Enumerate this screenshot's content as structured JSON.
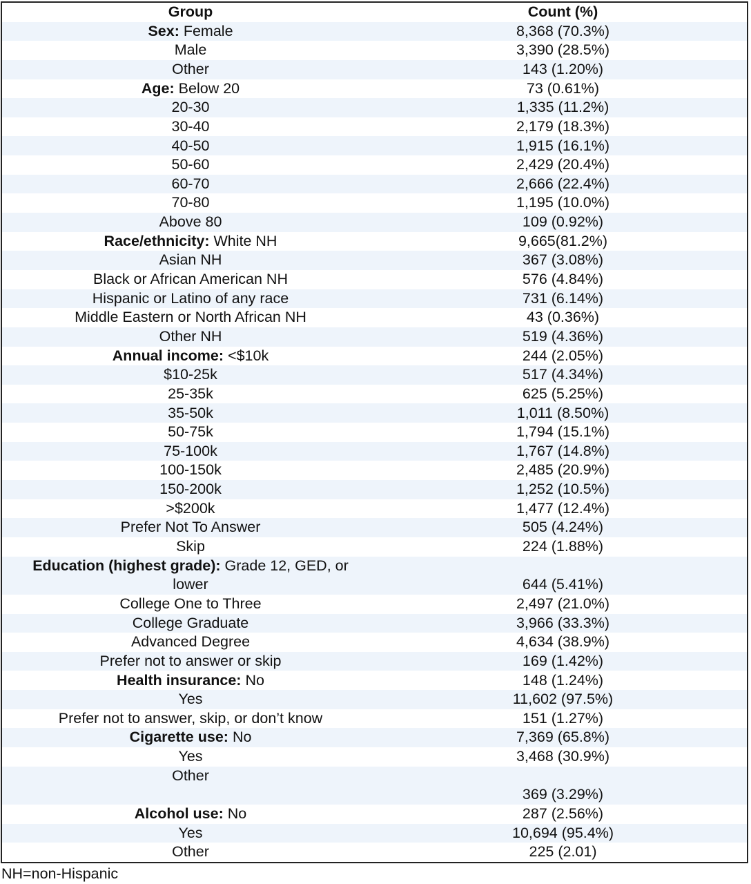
{
  "table": {
    "headers": {
      "group": "Group",
      "count": "Count (%)"
    },
    "rows": [
      {
        "label": "Sex:",
        "group": "Female",
        "count": "8,368 (70.3%)"
      },
      {
        "group": "Male",
        "count": "3,390 (28.5%)"
      },
      {
        "group": "Other",
        "count": "143 (1.20%)"
      },
      {
        "label": "Age:",
        "group": "Below 20",
        "count": "73 (0.61%)"
      },
      {
        "group": "20-30",
        "count": "1,335 (11.2%)"
      },
      {
        "group": "30-40",
        "count": "2,179 (18.3%)"
      },
      {
        "group": "40-50",
        "count": "1,915 (16.1%)"
      },
      {
        "group": "50-60",
        "count": "2,429 (20.4%)"
      },
      {
        "group": "60-70",
        "count": "2,666 (22.4%)"
      },
      {
        "group": "70-80",
        "count": "1,195 (10.0%)"
      },
      {
        "group": "Above 80",
        "count": "109 (0.92%)"
      },
      {
        "label": "Race/ethnicity:",
        "group": "White NH",
        "count": "9,665(81.2%)"
      },
      {
        "group": "Asian NH",
        "count": "367 (3.08%)"
      },
      {
        "group": "Black or African American NH",
        "count": "576 (4.84%)"
      },
      {
        "group": "Hispanic or Latino of any race",
        "count": "731 (6.14%)"
      },
      {
        "group": "Middle Eastern or North African NH",
        "count": "43 (0.36%)"
      },
      {
        "group": "Other NH",
        "count": "519 (4.36%)"
      },
      {
        "label": "Annual income:",
        "group": "<$10k",
        "count": "244 (2.05%)"
      },
      {
        "group": "$10-25k",
        "count": "517 (4.34%)"
      },
      {
        "group": "25-35k",
        "count": "625 (5.25%)"
      },
      {
        "group": "35-50k",
        "count": "1,011 (8.50%)"
      },
      {
        "group": "50-75k",
        "count": "1,794 (15.1%)"
      },
      {
        "group": "75-100k",
        "count": "1,767 (14.8%)"
      },
      {
        "group": "100-150k",
        "count": "2,485 (20.9%)"
      },
      {
        "group": "150-200k",
        "count": "1,252 (10.5%)"
      },
      {
        "group": ">$200k",
        "count": "1,477 (12.4%)"
      },
      {
        "group": "Prefer Not To Answer",
        "count": "505 (4.24%)"
      },
      {
        "group": "Skip",
        "count": "224 (1.88%)"
      },
      {
        "label": "Education (highest grade):",
        "group": "Grade 12, GED, or",
        "group_line2": "lower",
        "count": "644 (5.41%)"
      },
      {
        "group": "College One to Three",
        "count": "2,497 (21.0%)"
      },
      {
        "group": "College Graduate",
        "count": "3,966 (33.3%)"
      },
      {
        "group": "Advanced Degree",
        "count": "4,634 (38.9%)"
      },
      {
        "group": "Prefer not to answer or skip",
        "count": "169 (1.42%)"
      },
      {
        "label": "Health insurance:",
        "group": "No",
        "count": "148 (1.24%)"
      },
      {
        "group": "Yes",
        "count": "11,602 (97.5%)"
      },
      {
        "group": "Prefer not to answer, skip, or don’t know",
        "count": "151 (1.27%)"
      },
      {
        "label": "Cigarette use:",
        "group": "No",
        "count": "7,369 (65.8%)"
      },
      {
        "group": "Yes",
        "count": "3,468 (30.9%)"
      },
      {
        "group": "Other",
        "count": "369 (3.29%)",
        "tall_count_below": true
      },
      {
        "label": "Alcohol use:",
        "group": "No",
        "count": "287 (2.56%)"
      },
      {
        "group": "Yes",
        "count": "10,694 (95.4%)"
      },
      {
        "group": "Other",
        "count": "225 (2.01)"
      }
    ]
  },
  "footnote": "NH=non-Hispanic"
}
